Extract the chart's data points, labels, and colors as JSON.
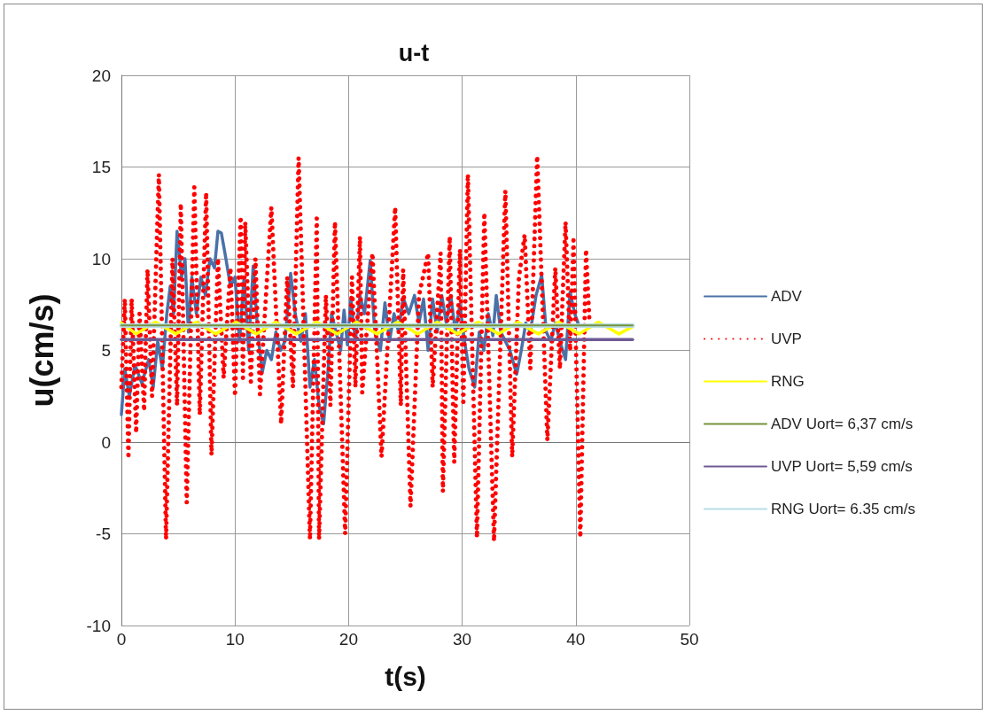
{
  "chart_data": {
    "type": "line",
    "title": "u-t",
    "xlabel": "t(s)",
    "ylabel": "u(cm/s)",
    "xlim": [
      0,
      50
    ],
    "xticks": [
      0,
      10,
      20,
      30,
      40,
      50
    ],
    "ylim": [
      -10,
      20
    ],
    "yticks": [
      -10,
      -5,
      0,
      5,
      10,
      15,
      20
    ],
    "grid": true,
    "legend": "right",
    "marker": "none",
    "series": [
      {
        "name": "ADV",
        "color": "#4a71a8",
        "line_style": "solid",
        "x": [
          0,
          0.3,
          0.7,
          1.2,
          1.8,
          2.4,
          2.8,
          3.2,
          3.6,
          4.0,
          4.3,
          4.6,
          4.9,
          5.3,
          5.6,
          5.9,
          6.2,
          6.6,
          7.0,
          7.4,
          7.8,
          8.2,
          8.5,
          8.8,
          9.2,
          9.6,
          10.0,
          10.4,
          10.8,
          11.2,
          11.6,
          12.0,
          12.4,
          12.8,
          13.2,
          13.6,
          14.0,
          14.4,
          14.9,
          15.3,
          15.8,
          16.2,
          16.6,
          17.0,
          17.4,
          17.8,
          18.2,
          18.5,
          18.9,
          19.3,
          19.6,
          19.9,
          20.2,
          20.6,
          21.0,
          21.4,
          21.9,
          22.3,
          22.8,
          23.2,
          23.6,
          24.0,
          24.4,
          24.8,
          25.3,
          25.8,
          26.2,
          26.6,
          27.0,
          27.4,
          27.8,
          28.2,
          28.6,
          29.0,
          29.4,
          29.8,
          30.2,
          30.6,
          31.1,
          31.5,
          31.9,
          32.3,
          32.7,
          33.0,
          33.4,
          33.8,
          34.2,
          34.8,
          35.2,
          35.6,
          36.0,
          36.5,
          37.0,
          37.4,
          37.8,
          38.2,
          38.6,
          39.1,
          39.5,
          39.9,
          40.2
        ],
        "values": [
          1.5,
          4,
          2.5,
          4.2,
          3.2,
          4.5,
          3,
          5.5,
          4,
          7,
          8.5,
          7,
          11.5,
          9,
          10,
          6,
          9,
          7,
          9,
          8,
          10,
          9.5,
          11.5,
          11.4,
          10,
          8.5,
          9,
          5.5,
          9,
          5,
          9.6,
          6,
          3.8,
          5,
          4.5,
          6,
          5,
          5.5,
          9.2,
          7,
          5.5,
          7,
          3,
          4.5,
          2,
          1,
          4,
          7,
          6,
          5,
          7.2,
          5.3,
          7.8,
          5.5,
          8,
          7,
          9.9,
          6,
          5,
          7.6,
          5.5,
          7,
          6,
          7.9,
          7,
          8,
          6.5,
          7.8,
          5,
          7.8,
          6,
          8,
          6.5,
          8,
          6,
          7.5,
          5.5,
          4,
          3,
          6,
          5,
          7,
          5.8,
          8,
          6,
          5.5,
          5,
          3.7,
          5,
          6.5,
          6,
          8,
          9.1,
          6,
          5.5,
          6.5,
          5.5,
          4.5,
          8.2,
          7,
          6.5
        ]
      },
      {
        "name": "UVP",
        "color": "#ff0000",
        "line_style": "dotted",
        "x": [
          0,
          0.3,
          0.62,
          0.9,
          1.3,
          1.6,
          2.0,
          2.3,
          2.7,
          3.3,
          3.93,
          4.5,
          4.9,
          5.23,
          5.75,
          6.42,
          6.9,
          7.46,
          7.93,
          8.5,
          9.0,
          9.6,
          10.0,
          10.5,
          10.7,
          10.9,
          11.4,
          11.8,
          12.2,
          13.2,
          14.06,
          14.6,
          15.1,
          15.6,
          16.6,
          17.2,
          17.4,
          18.0,
          18.4,
          18.8,
          19.7,
          20.3,
          20.6,
          21.0,
          21.2,
          22.1,
          22.9,
          24.1,
          24.6,
          24.8,
          25.45,
          26.2,
          27.0,
          27.4,
          28.1,
          28.3,
          28.9,
          29.3,
          29.8,
          30.1,
          30.5,
          31.3,
          31.95,
          32.8,
          33.8,
          34.4,
          35.0,
          35.5,
          36.0,
          36.6,
          37.5,
          38.2,
          38.6,
          39.1,
          39.5,
          39.8,
          40.4,
          40.9,
          41.2
        ],
        "values": [
          3,
          7.8,
          -0.9,
          7.8,
          0.5,
          7,
          1.7,
          9.4,
          2.5,
          14.6,
          -5.3,
          10,
          2,
          13,
          -3.3,
          13.9,
          1.5,
          13.6,
          -0.7,
          10,
          3.5,
          9.5,
          2.5,
          12.3,
          3.5,
          12,
          3.3,
          10,
          2.6,
          12.8,
          1,
          9,
          3,
          15.5,
          -5.3,
          12.2,
          -5.3,
          8,
          2,
          12,
          -5,
          9,
          3,
          11.2,
          2.7,
          10.3,
          -0.8,
          12.8,
          2,
          9.4,
          -3.5,
          8,
          10.3,
          3,
          10.3,
          -2.7,
          11.2,
          -1.1,
          10.5,
          2,
          14.6,
          -5.2,
          12.5,
          -5.4,
          13.7,
          -0.8,
          9,
          11.3,
          4,
          15.6,
          0.1,
          9.5,
          4,
          12,
          5,
          11,
          -5.2,
          10.5,
          6.6
        ]
      },
      {
        "name": "RNG",
        "color": "#ffff00",
        "line_style": "solid",
        "x": [
          0,
          1.3,
          3.0,
          4.8,
          6.6,
          8.3,
          10.1,
          11.9,
          13.6,
          15.4,
          17.2,
          19.0,
          20.7,
          22.5,
          24.3,
          26.1,
          27.8,
          29.6,
          31.4,
          33.2,
          34.9,
          36.7,
          38.5,
          40.3,
          42.0,
          43.8,
          45
        ],
        "values": [
          6.5,
          5.9,
          6.55,
          5.9,
          6.55,
          5.9,
          6.55,
          5.9,
          6.55,
          5.9,
          6.55,
          5.9,
          6.55,
          5.9,
          6.55,
          5.9,
          6.55,
          5.9,
          6.55,
          5.9,
          6.55,
          5.9,
          6.55,
          5.9,
          6.55,
          5.9,
          6.3
        ]
      },
      {
        "name": "ADV Uort= 6,37 cm/s",
        "color": "#77933c",
        "line_style": "solid",
        "x": [
          0,
          45
        ],
        "values": [
          6.37,
          6.37
        ]
      },
      {
        "name": "UVP Uort= 5,59 cm/s",
        "color": "#6f5a94",
        "line_style": "solid",
        "x": [
          0,
          45
        ],
        "values": [
          5.59,
          5.59
        ]
      },
      {
        "name": "RNG Uort= 6.35 cm/s",
        "color": "#b7dde8",
        "line_style": "solid",
        "x": [
          0,
          45
        ],
        "values": [
          6.35,
          6.35
        ]
      }
    ]
  }
}
